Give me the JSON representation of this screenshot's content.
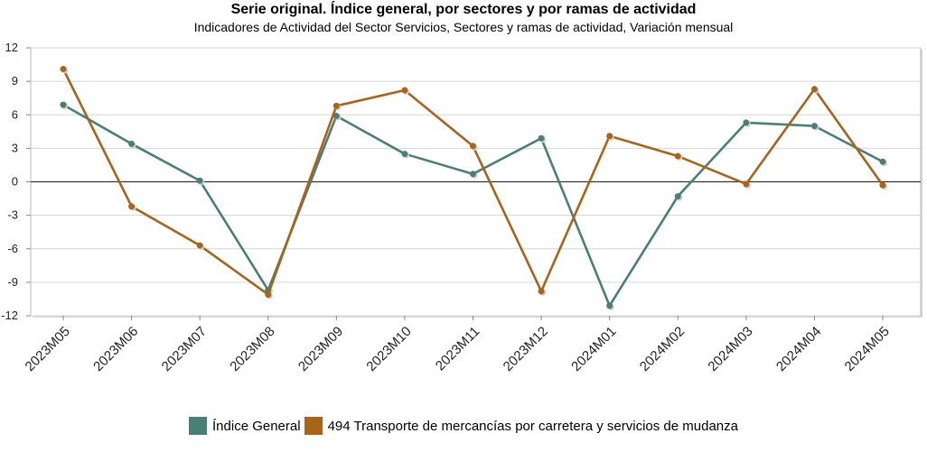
{
  "chart_data": {
    "type": "line",
    "title": "Serie original. Índice general, por sectores y por ramas de actividad",
    "subtitle": "Indicadores de Actividad del Sector Servicios, Sectores y ramas de actividad, Variación mensual",
    "categories": [
      "2023M05",
      "2023M06",
      "2023M07",
      "2023M08",
      "2023M09",
      "2023M10",
      "2023M11",
      "2023M12",
      "2024M01",
      "2024M02",
      "2024M03",
      "2024M04",
      "2024M05"
    ],
    "yticks": [
      12,
      9,
      6,
      3,
      0,
      -3,
      -6,
      -9,
      -12
    ],
    "ylim": [
      -12,
      12
    ],
    "grid": true,
    "legend_position": "bottom",
    "series": [
      {
        "name": "Índice General",
        "color": "#4a7f75",
        "values": [
          6.9,
          3.4,
          0.1,
          -9.7,
          5.9,
          2.5,
          0.7,
          3.9,
          -11.1,
          -1.3,
          5.3,
          5.0,
          1.8
        ]
      },
      {
        "name": "494 Transporte de mercancías por carretera y servicios de mudanza",
        "color": "#a86419",
        "values": [
          10.1,
          -2.2,
          -5.7,
          -10.1,
          6.8,
          8.2,
          3.2,
          -9.8,
          4.1,
          2.3,
          -0.2,
          8.3,
          -0.3
        ]
      }
    ]
  }
}
